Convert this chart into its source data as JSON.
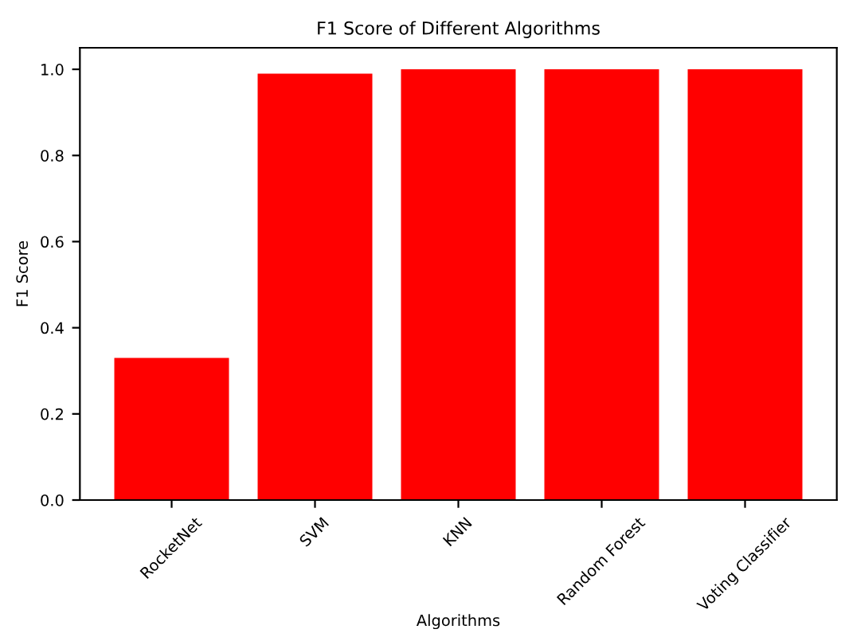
{
  "chart_data": {
    "type": "bar",
    "title": "F1 Score of Different Algorithms",
    "xlabel": "Algorithms",
    "ylabel": "F1 Score",
    "categories": [
      "RocketNet",
      "SVM",
      "KNN",
      "Random Forest",
      "Voting Classifier"
    ],
    "values": [
      0.33,
      0.99,
      1.0,
      1.0,
      1.0
    ],
    "color": "#ff0000",
    "ylim": [
      0,
      1.05
    ],
    "yticks": [
      {
        "value": 0,
        "label": "0.0"
      },
      0.2,
      0.4,
      0.6,
      0.8,
      {
        "value": 1,
        "label": "1.0"
      }
    ],
    "grid": false,
    "legend": false
  }
}
